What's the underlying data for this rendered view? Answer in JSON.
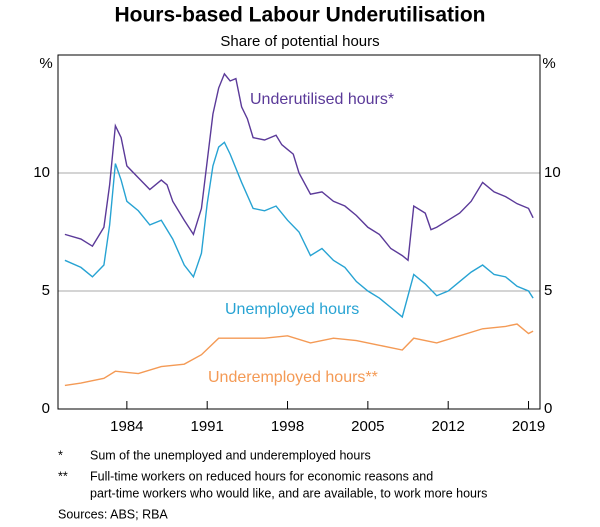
{
  "chart_data": {
    "type": "line",
    "title": "Hours-based Labour Underutilisation",
    "subtitle": "Share of potential hours",
    "y_unit": "%",
    "y2_unit": "%",
    "xlim": [
      1978,
      2020
    ],
    "xticks": [
      1984,
      1991,
      1998,
      2005,
      2012,
      2019
    ],
    "ylim": [
      0,
      15
    ],
    "yticks": [
      0,
      5,
      10
    ],
    "y2lim": [
      0,
      15
    ],
    "y2ticks": [
      0,
      5,
      10
    ],
    "grid": true,
    "series": [
      {
        "name": "Underutilised hours*",
        "color": "#5b3a99",
        "x": [
          1978.6,
          1980,
          1981,
          1981.5,
          1982,
          1982.5,
          1983,
          1983.5,
          1984,
          1985,
          1986,
          1987,
          1987.5,
          1988,
          1989,
          1989.8,
          1990.5,
          1991,
          1991.5,
          1992,
          1992.5,
          1993,
          1993.5,
          1994,
          1994.5,
          1995,
          1996,
          1997,
          1997.5,
          1998,
          1998.5,
          1999,
          2000,
          2001,
          2002,
          2003,
          2004,
          2005,
          2006,
          2007,
          2008,
          2008.5,
          2009,
          2010,
          2010.5,
          2011,
          2012,
          2013,
          2014,
          2015,
          2016,
          2017,
          2018,
          2019,
          2019.4
        ],
        "values": [
          7.4,
          7.2,
          6.9,
          7.3,
          7.7,
          9.5,
          12.0,
          11.5,
          10.3,
          9.8,
          9.3,
          9.7,
          9.5,
          8.8,
          8.0,
          7.4,
          8.5,
          10.5,
          12.5,
          13.6,
          14.2,
          13.9,
          14.0,
          12.8,
          12.3,
          11.5,
          11.4,
          11.6,
          11.2,
          11.0,
          10.8,
          10.0,
          9.1,
          9.2,
          8.8,
          8.6,
          8.2,
          7.7,
          7.4,
          6.8,
          6.5,
          6.3,
          8.6,
          8.3,
          7.6,
          7.7,
          8.0,
          8.3,
          8.8,
          9.6,
          9.2,
          9.0,
          8.7,
          8.5,
          8.1
        ]
      },
      {
        "name": "Unemployed hours",
        "color": "#27a3d3",
        "x": [
          1978.6,
          1980,
          1981,
          1982,
          1982.5,
          1983,
          1983.5,
          1984,
          1985,
          1986,
          1987,
          1988,
          1989,
          1989.8,
          1990.5,
          1991,
          1991.5,
          1992,
          1992.5,
          1993,
          1994,
          1995,
          1996,
          1997,
          1998,
          1999,
          2000,
          2001,
          2002,
          2003,
          2004,
          2005,
          2006,
          2007,
          2008,
          2009,
          2010,
          2011,
          2012,
          2013,
          2014,
          2015,
          2016,
          2017,
          2018,
          2019,
          2019.4
        ],
        "values": [
          6.3,
          6.0,
          5.6,
          6.1,
          7.8,
          10.4,
          9.7,
          8.8,
          8.4,
          7.8,
          8.0,
          7.2,
          6.1,
          5.6,
          6.6,
          8.7,
          10.3,
          11.1,
          11.3,
          10.8,
          9.6,
          8.5,
          8.4,
          8.6,
          8.0,
          7.5,
          6.5,
          6.8,
          6.3,
          6.0,
          5.4,
          5.0,
          4.7,
          4.3,
          3.9,
          5.7,
          5.3,
          4.8,
          5.0,
          5.4,
          5.8,
          6.1,
          5.7,
          5.6,
          5.2,
          5.0,
          4.7
        ]
      },
      {
        "name": "Underemployed hours**",
        "color": "#f49a55",
        "x": [
          1978.6,
          1980,
          1982,
          1983,
          1985,
          1987,
          1989,
          1990.5,
          1992,
          1994,
          1996,
          1998,
          2000,
          2002,
          2004,
          2006,
          2008,
          2009,
          2011,
          2013,
          2015,
          2017,
          2018,
          2019,
          2019.4
        ],
        "values": [
          1.0,
          1.1,
          1.3,
          1.6,
          1.5,
          1.8,
          1.9,
          2.3,
          3.0,
          3.0,
          3.0,
          3.1,
          2.8,
          3.0,
          2.9,
          2.7,
          2.5,
          3.0,
          2.8,
          3.1,
          3.4,
          3.5,
          3.6,
          3.2,
          3.3
        ]
      }
    ],
    "notes": [
      {
        "mark": "*",
        "text": "Sum of the unemployed and underemployed hours"
      },
      {
        "mark": "**",
        "text": "Full-time workers on reduced hours for economic reasons and",
        "text2": "part-time workers who would like, and are available, to work more hours"
      }
    ],
    "source": "Sources:   ABS; RBA"
  }
}
